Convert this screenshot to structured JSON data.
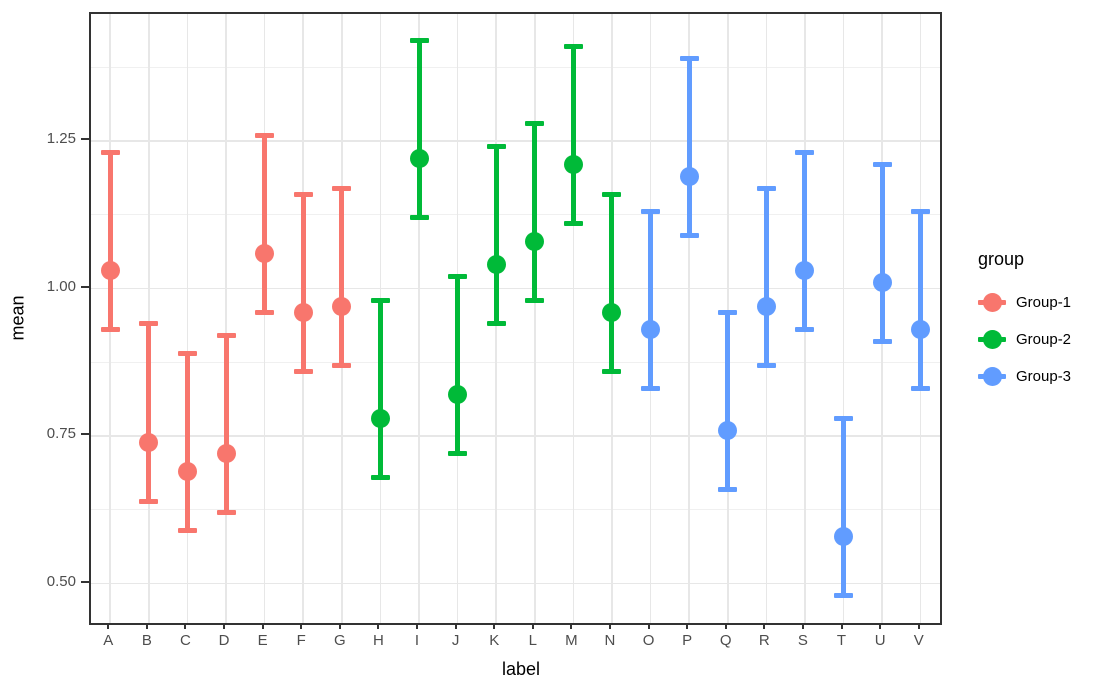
{
  "chart_data": {
    "type": "scatter",
    "subtype": "pointrange (point with error bars)",
    "title": "",
    "xlabel": "label",
    "ylabel": "mean",
    "x_categories": [
      "A",
      "B",
      "C",
      "D",
      "E",
      "F",
      "G",
      "H",
      "I",
      "J",
      "K",
      "L",
      "M",
      "N",
      "O",
      "P",
      "Q",
      "R",
      "S",
      "T",
      "U",
      "V"
    ],
    "y_ticks": [
      0.5,
      0.75,
      1.0,
      1.25
    ],
    "y_tick_labels": [
      "0.50",
      "0.75",
      "1.00",
      "1.25"
    ],
    "y_minor_gridlines": [
      0.625,
      0.875,
      1.125,
      1.375
    ],
    "ylim": [
      0.43,
      1.465
    ],
    "grid": "horizontal major+minor, vertical major per category, light grey on white panel",
    "legend": {
      "title": "group",
      "position": "right"
    },
    "groups": [
      {
        "name": "Group-1",
        "color": "#F8766D"
      },
      {
        "name": "Group-2",
        "color": "#00BA38"
      },
      {
        "name": "Group-3",
        "color": "#619CFF"
      }
    ],
    "points": [
      {
        "label": "A",
        "group": "Group-1",
        "mean": 1.03,
        "lo": 0.93,
        "hi": 1.23
      },
      {
        "label": "B",
        "group": "Group-1",
        "mean": 0.74,
        "lo": 0.64,
        "hi": 0.94
      },
      {
        "label": "C",
        "group": "Group-1",
        "mean": 0.69,
        "lo": 0.59,
        "hi": 0.89
      },
      {
        "label": "D",
        "group": "Group-1",
        "mean": 0.72,
        "lo": 0.62,
        "hi": 0.92
      },
      {
        "label": "E",
        "group": "Group-1",
        "mean": 1.06,
        "lo": 0.96,
        "hi": 1.26
      },
      {
        "label": "F",
        "group": "Group-1",
        "mean": 0.96,
        "lo": 0.86,
        "hi": 1.16
      },
      {
        "label": "G",
        "group": "Group-1",
        "mean": 0.97,
        "lo": 0.87,
        "hi": 1.17
      },
      {
        "label": "H",
        "group": "Group-2",
        "mean": 0.78,
        "lo": 0.68,
        "hi": 0.98
      },
      {
        "label": "I",
        "group": "Group-2",
        "mean": 1.22,
        "lo": 1.12,
        "hi": 1.42
      },
      {
        "label": "J",
        "group": "Group-2",
        "mean": 0.82,
        "lo": 0.72,
        "hi": 1.02
      },
      {
        "label": "K",
        "group": "Group-2",
        "mean": 1.04,
        "lo": 0.94,
        "hi": 1.24
      },
      {
        "label": "L",
        "group": "Group-2",
        "mean": 1.08,
        "lo": 0.98,
        "hi": 1.28
      },
      {
        "label": "M",
        "group": "Group-2",
        "mean": 1.21,
        "lo": 1.11,
        "hi": 1.41
      },
      {
        "label": "N",
        "group": "Group-2",
        "mean": 0.96,
        "lo": 0.86,
        "hi": 1.16
      },
      {
        "label": "O",
        "group": "Group-3",
        "mean": 0.93,
        "lo": 0.83,
        "hi": 1.13
      },
      {
        "label": "P",
        "group": "Group-3",
        "mean": 1.19,
        "lo": 1.09,
        "hi": 1.39
      },
      {
        "label": "Q",
        "group": "Group-3",
        "mean": 0.76,
        "lo": 0.66,
        "hi": 0.96
      },
      {
        "label": "R",
        "group": "Group-3",
        "mean": 0.97,
        "lo": 0.87,
        "hi": 1.17
      },
      {
        "label": "S",
        "group": "Group-3",
        "mean": 1.03,
        "lo": 0.93,
        "hi": 1.23
      },
      {
        "label": "T",
        "group": "Group-3",
        "mean": 0.58,
        "lo": 0.48,
        "hi": 0.78
      },
      {
        "label": "U",
        "group": "Group-3",
        "mean": 1.01,
        "lo": 0.91,
        "hi": 1.21
      },
      {
        "label": "V",
        "group": "Group-3",
        "mean": 0.93,
        "lo": 0.83,
        "hi": 1.13
      }
    ],
    "colors": {
      "panel_border": "#333333",
      "gridline_major": "#e7e7e7",
      "gridline_minor": "#f0f0f0",
      "tick_label": "#4d4d4d",
      "axis_title": "#000000"
    }
  }
}
